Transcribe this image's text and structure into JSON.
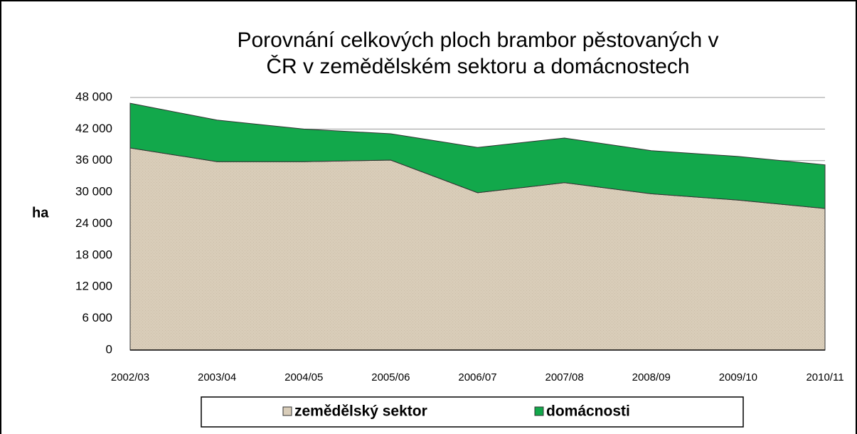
{
  "chart_data": {
    "type": "stacked_area",
    "title": "Porovnání celkových ploch brambor pěstovaných v ČR  v zemědělském sektoru a domácnostech",
    "y_label": "ha",
    "categories": [
      "2002/03",
      "2003/04",
      "2004/05",
      "2005/06",
      "2006/07",
      "2007/08",
      "2008/09",
      "2009/10",
      "2010/11"
    ],
    "series": [
      {
        "name": "zemědělský sektor",
        "color": "#d9cdb9",
        "values": [
          38400,
          35800,
          35800,
          36100,
          29900,
          31800,
          29700,
          28500,
          26900
        ]
      },
      {
        "name": "domácnosti",
        "color": "#12a84b",
        "values": [
          8500,
          7900,
          6200,
          5000,
          8600,
          8500,
          8200,
          8300,
          8300
        ]
      }
    ],
    "ylim": [
      0,
      48000
    ],
    "yticks": [
      0,
      {
        "value": 6000,
        "label": "6 000"
      },
      {
        "value": 12000,
        "label": "12 000"
      },
      {
        "value": 18000,
        "label": "18 000"
      },
      {
        "value": 24000,
        "label": "24 000"
      },
      {
        "value": 30000,
        "label": "30 000"
      },
      {
        "value": 36000,
        "label": "36 000"
      },
      {
        "value": 42000,
        "label": "42 000"
      },
      {
        "value": 48000,
        "label": "48 000"
      }
    ],
    "grid": true,
    "legend": "bottom"
  }
}
